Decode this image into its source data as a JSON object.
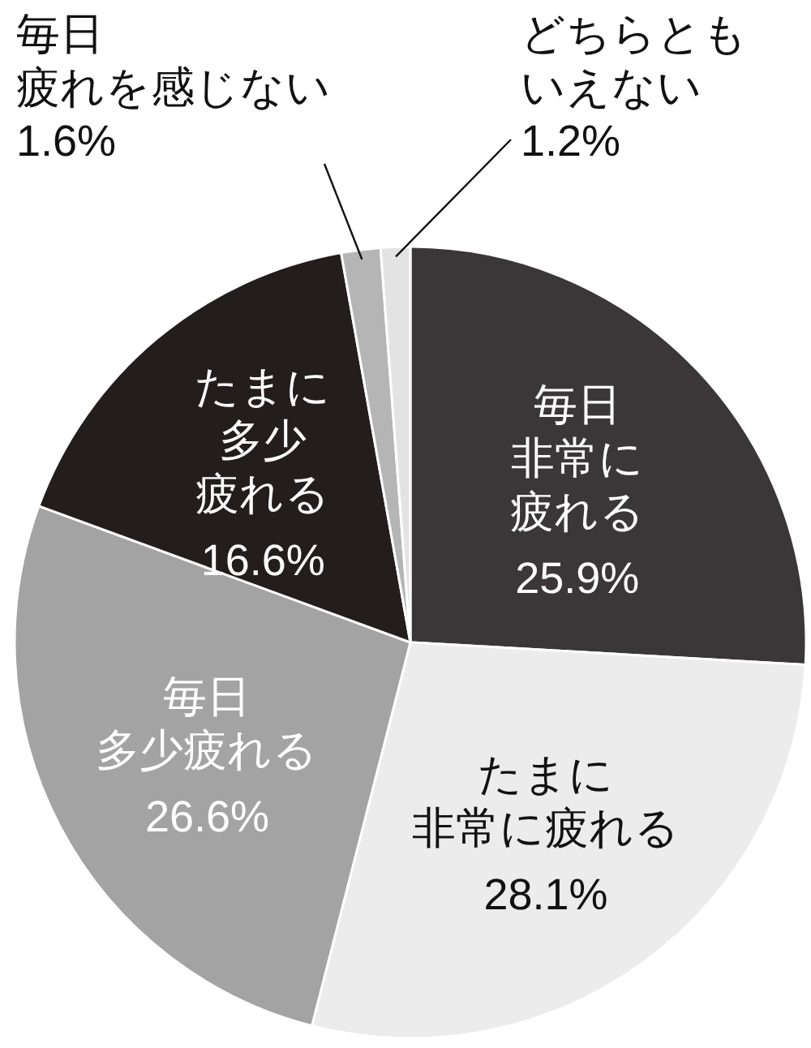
{
  "chart_data": {
    "type": "pie",
    "categories": [
      "毎日非常に疲れる",
      "たまに非常に疲れる",
      "毎日多少疲れる",
      "たまに多少疲れる",
      "毎日疲れを感じない",
      "どちらともいえない"
    ],
    "values": [
      25.9,
      28.1,
      26.6,
      16.6,
      1.6,
      1.2
    ],
    "colors": [
      "#3b3637",
      "#ececec",
      "#a3a3a3",
      "#231d1c",
      "#b5b5b5",
      "#e3e3e3"
    ],
    "value_labels": [
      "25.9%",
      "28.1%",
      "26.6%",
      "16.6%",
      "1.6%",
      "1.2%"
    ]
  }
}
